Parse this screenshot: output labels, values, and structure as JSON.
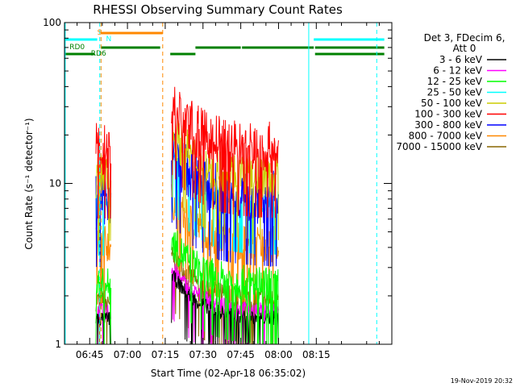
{
  "chart_data": {
    "type": "line",
    "title": "RHESSI Observing Summary Count Rates",
    "xlabel": "Start Time (02-Apr-18 06:35:02)",
    "ylabel": "Count Rate (s⁻¹ detector⁻¹)",
    "yscale": "log",
    "ylim": [
      1,
      100
    ],
    "xlim_minutes_after_0635": [
      0,
      130
    ],
    "x_ticks": [
      "06:45",
      "07:00",
      "07:15",
      "07:30",
      "07:45",
      "08:00",
      "08:15"
    ],
    "y_ticks": [
      "1",
      "10",
      "100"
    ],
    "legend": {
      "header": [
        "Det 3, FDecim 6,",
        "Att 0"
      ],
      "position": "right"
    },
    "series": [
      {
        "name": "3 - 6 keV",
        "color": "#000000",
        "level": [
          1.3,
          1.6
        ]
      },
      {
        "name": "6 - 12 keV",
        "color": "#ff00ff",
        "level": [
          1.4,
          1.8
        ]
      },
      {
        "name": "12 - 25 keV",
        "color": "#00ff00",
        "level": [
          1.8,
          3.0
        ]
      },
      {
        "name": "25 - 50 keV",
        "color": "#00ffff",
        "level": [
          6.5,
          9.0
        ]
      },
      {
        "name": "50 - 100 keV",
        "color": "#cccc00",
        "level": [
          8.0,
          15.0
        ]
      },
      {
        "name": "100 - 300 keV",
        "color": "#ff0000",
        "level": [
          11.0,
          24.0
        ]
      },
      {
        "name": "300 - 800 keV",
        "color": "#0000ff",
        "level": [
          5.5,
          12.0
        ]
      },
      {
        "name": "800 - 7000 keV",
        "color": "#ff8800",
        "level": [
          3.2,
          5.5
        ]
      },
      {
        "name": "7000 - 15000 keV",
        "color": "#886600",
        "level": [
          1.6,
          2.2
        ]
      }
    ],
    "data_intervals_minutes": [
      [
        12.5,
        18.5
      ],
      [
        42.5,
        85
      ]
    ],
    "flag_labels": {
      "saa": "S",
      "night": "N",
      "rd0": "RD0",
      "rd6": "RD6"
    },
    "timestamp": "19-Nov-2019 20:32"
  }
}
